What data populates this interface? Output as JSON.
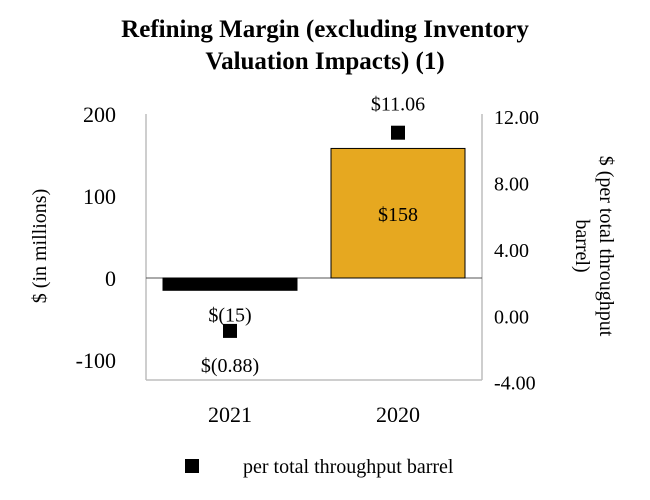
{
  "chart_data": {
    "type": "bar",
    "title_lines": [
      "Refining Margin (excluding Inventory",
      "Valuation Impacts) (1)"
    ],
    "categories": [
      "2021",
      "2020"
    ],
    "series": [
      {
        "type": "bar",
        "axis": "left",
        "values": [
          -15,
          158
        ],
        "labels": [
          "$(15)",
          "$158"
        ],
        "colors": [
          "#000000",
          "#E6A820"
        ]
      },
      {
        "name": "per total throughput barrel",
        "type": "scatter",
        "marker": "square",
        "axis": "right",
        "values": [
          -0.88,
          11.06
        ],
        "labels": [
          "$(0.88)",
          "$11.06"
        ],
        "color": "#000000"
      }
    ],
    "y_left": {
      "label": "$ (in millions)",
      "ticks": [
        "200",
        "100",
        "0",
        "-100"
      ],
      "tick_values": [
        200,
        100,
        0,
        -100
      ],
      "range": [
        -125,
        200
      ]
    },
    "y_right": {
      "label_lines": [
        "$ (per total throughput",
        "barrel)"
      ],
      "ticks": [
        "12.00",
        "8.00",
        "4.00",
        "0.00",
        "-4.00"
      ],
      "tick_values": [
        12,
        8,
        4,
        0,
        -4
      ],
      "range": [
        -4,
        12
      ]
    },
    "legend": {
      "position": "bottom",
      "label": "per total throughput barrel"
    },
    "grid": false
  }
}
